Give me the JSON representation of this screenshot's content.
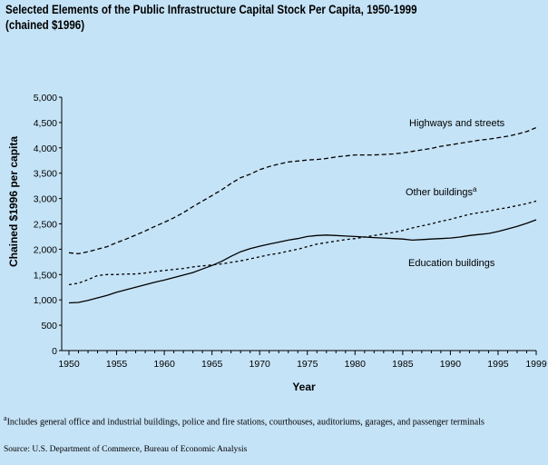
{
  "chart_data": {
    "type": "line",
    "title_line1": "Selected Elements of the Public Infrastructure Capital Stock Per Capita, 1950-1999",
    "title_line2": "(chained $1996)",
    "xlabel": "Year",
    "ylabel": "Chained $1996 per capita",
    "xlim": [
      1950,
      1999
    ],
    "ylim": [
      0,
      5000
    ],
    "x_ticks": [
      1950,
      1955,
      1960,
      1965,
      1970,
      1975,
      1980,
      1985,
      1990,
      1995,
      1999
    ],
    "y_ticks": [
      0,
      500,
      1000,
      1500,
      2000,
      2500,
      3000,
      3500,
      4000,
      4500,
      5000
    ],
    "y_tick_labels": [
      "0",
      "500",
      "1,000",
      "1,500",
      "2,000",
      "2,500",
      "3,000",
      "3,500",
      "4,000",
      "4,500",
      "5,000"
    ],
    "series": [
      {
        "name": "Highways and streets",
        "style": "dashed",
        "points": [
          [
            1950,
            1930
          ],
          [
            1951,
            1910
          ],
          [
            1952,
            1950
          ],
          [
            1953,
            2000
          ],
          [
            1954,
            2050
          ],
          [
            1955,
            2130
          ],
          [
            1956,
            2200
          ],
          [
            1957,
            2280
          ],
          [
            1958,
            2360
          ],
          [
            1959,
            2450
          ],
          [
            1960,
            2530
          ],
          [
            1961,
            2620
          ],
          [
            1962,
            2720
          ],
          [
            1963,
            2840
          ],
          [
            1964,
            2950
          ],
          [
            1965,
            3060
          ],
          [
            1966,
            3170
          ],
          [
            1967,
            3300
          ],
          [
            1968,
            3410
          ],
          [
            1969,
            3480
          ],
          [
            1970,
            3570
          ],
          [
            1971,
            3630
          ],
          [
            1972,
            3680
          ],
          [
            1973,
            3720
          ],
          [
            1974,
            3740
          ],
          [
            1975,
            3760
          ],
          [
            1976,
            3770
          ],
          [
            1977,
            3790
          ],
          [
            1978,
            3820
          ],
          [
            1979,
            3840
          ],
          [
            1980,
            3860
          ],
          [
            1981,
            3860
          ],
          [
            1982,
            3860
          ],
          [
            1983,
            3870
          ],
          [
            1984,
            3880
          ],
          [
            1985,
            3900
          ],
          [
            1986,
            3930
          ],
          [
            1987,
            3960
          ],
          [
            1988,
            3990
          ],
          [
            1989,
            4030
          ],
          [
            1990,
            4060
          ],
          [
            1991,
            4090
          ],
          [
            1992,
            4120
          ],
          [
            1993,
            4150
          ],
          [
            1994,
            4170
          ],
          [
            1995,
            4200
          ],
          [
            1996,
            4230
          ],
          [
            1997,
            4270
          ],
          [
            1998,
            4320
          ],
          [
            1999,
            4400
          ]
        ]
      },
      {
        "name": "Other buildings",
        "superscript": "a",
        "style": "dotted",
        "points": [
          [
            1950,
            1300
          ],
          [
            1951,
            1330
          ],
          [
            1952,
            1400
          ],
          [
            1953,
            1480
          ],
          [
            1954,
            1500
          ],
          [
            1955,
            1500
          ],
          [
            1956,
            1510
          ],
          [
            1957,
            1510
          ],
          [
            1958,
            1530
          ],
          [
            1959,
            1560
          ],
          [
            1960,
            1580
          ],
          [
            1961,
            1600
          ],
          [
            1962,
            1620
          ],
          [
            1963,
            1650
          ],
          [
            1964,
            1670
          ],
          [
            1965,
            1690
          ],
          [
            1966,
            1710
          ],
          [
            1967,
            1740
          ],
          [
            1968,
            1770
          ],
          [
            1969,
            1810
          ],
          [
            1970,
            1850
          ],
          [
            1971,
            1890
          ],
          [
            1972,
            1920
          ],
          [
            1973,
            1960
          ],
          [
            1974,
            2000
          ],
          [
            1975,
            2050
          ],
          [
            1976,
            2100
          ],
          [
            1977,
            2130
          ],
          [
            1978,
            2160
          ],
          [
            1979,
            2190
          ],
          [
            1980,
            2210
          ],
          [
            1981,
            2240
          ],
          [
            1982,
            2270
          ],
          [
            1983,
            2300
          ],
          [
            1984,
            2330
          ],
          [
            1985,
            2370
          ],
          [
            1986,
            2420
          ],
          [
            1987,
            2460
          ],
          [
            1988,
            2500
          ],
          [
            1989,
            2550
          ],
          [
            1990,
            2590
          ],
          [
            1991,
            2640
          ],
          [
            1992,
            2690
          ],
          [
            1993,
            2720
          ],
          [
            1994,
            2750
          ],
          [
            1995,
            2790
          ],
          [
            1996,
            2820
          ],
          [
            1997,
            2860
          ],
          [
            1998,
            2900
          ],
          [
            1999,
            2950
          ]
        ]
      },
      {
        "name": "Education buildings",
        "style": "solid",
        "points": [
          [
            1950,
            940
          ],
          [
            1951,
            950
          ],
          [
            1952,
            990
          ],
          [
            1953,
            1040
          ],
          [
            1954,
            1090
          ],
          [
            1955,
            1150
          ],
          [
            1956,
            1200
          ],
          [
            1957,
            1250
          ],
          [
            1958,
            1300
          ],
          [
            1959,
            1350
          ],
          [
            1960,
            1390
          ],
          [
            1961,
            1440
          ],
          [
            1962,
            1490
          ],
          [
            1963,
            1540
          ],
          [
            1964,
            1610
          ],
          [
            1965,
            1680
          ],
          [
            1966,
            1760
          ],
          [
            1967,
            1860
          ],
          [
            1968,
            1950
          ],
          [
            1969,
            2010
          ],
          [
            1970,
            2060
          ],
          [
            1971,
            2100
          ],
          [
            1972,
            2140
          ],
          [
            1973,
            2180
          ],
          [
            1974,
            2210
          ],
          [
            1975,
            2250
          ],
          [
            1976,
            2270
          ],
          [
            1977,
            2280
          ],
          [
            1978,
            2270
          ],
          [
            1979,
            2260
          ],
          [
            1980,
            2250
          ],
          [
            1981,
            2240
          ],
          [
            1982,
            2230
          ],
          [
            1983,
            2220
          ],
          [
            1984,
            2210
          ],
          [
            1985,
            2200
          ],
          [
            1986,
            2180
          ],
          [
            1987,
            2190
          ],
          [
            1988,
            2200
          ],
          [
            1989,
            2210
          ],
          [
            1990,
            2220
          ],
          [
            1991,
            2240
          ],
          [
            1992,
            2270
          ],
          [
            1993,
            2290
          ],
          [
            1994,
            2310
          ],
          [
            1995,
            2350
          ],
          [
            1996,
            2400
          ],
          [
            1997,
            2450
          ],
          [
            1998,
            2510
          ],
          [
            1999,
            2580
          ]
        ]
      }
    ]
  },
  "footnote": {
    "marker": "a",
    "text": "Includes general office and industrial buildings, police and fire stations, courthouses, auditoriums, garages, and passenger terminals"
  },
  "source": "Source:  U.S. Department of Commerce, Bureau of Economic Analysis"
}
